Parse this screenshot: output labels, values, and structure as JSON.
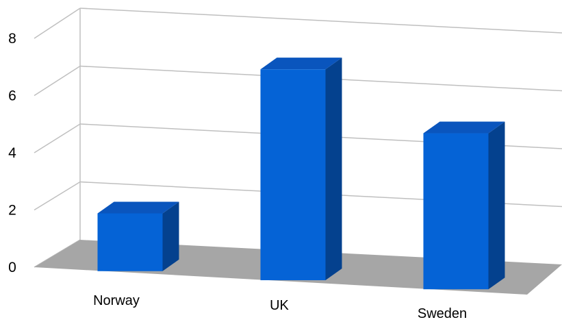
{
  "chart_data": {
    "type": "bar",
    "categories": [
      "Norway",
      "UK",
      "Sweden"
    ],
    "values": [
      2,
      7.3,
      5.4
    ],
    "ylim": [
      0,
      8
    ],
    "yticks": [
      "0",
      "2",
      "4",
      "6",
      "8"
    ],
    "title": "",
    "xlabel": "",
    "ylabel": "",
    "grid": true,
    "legend": "none",
    "style": "3d-column"
  },
  "colors": {
    "bar_front": "#0563d6",
    "bar_side": "#04418e",
    "bar_top": "#0a55bd",
    "floor": "#a6a6a6",
    "grid": "#bfbfbf",
    "axis_wall": "#bfbfbf"
  }
}
